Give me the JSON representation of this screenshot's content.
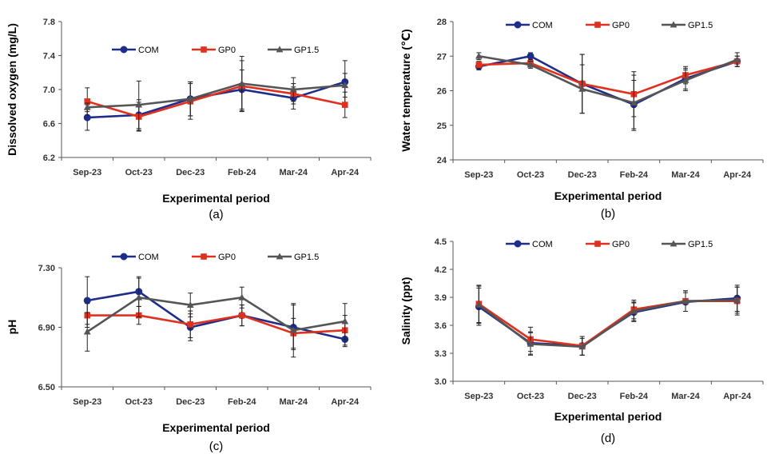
{
  "chart_data": [
    {
      "type": "line",
      "panel": "(a)",
      "title": "",
      "xlabel": "Experimental period",
      "ylabel": "Dissolved oxygen (mg/L)",
      "categories": [
        "Sep-23",
        "Oct-23",
        "Dec-23",
        "Feb-24",
        "Mar-24",
        "Apr-24"
      ],
      "ylim": [
        6.2,
        7.8
      ],
      "yticks": [
        6.2,
        6.6,
        7.0,
        7.4,
        7.8
      ],
      "ytick_labels": [
        "6.2",
        "6.6",
        "7.0",
        "7.4",
        "7.8"
      ],
      "legend": "top",
      "series": [
        {
          "name": "COM",
          "color": "#1f2d8a",
          "marker": "circle",
          "values": [
            6.67,
            6.7,
            6.89,
            7.0,
            6.9,
            7.09
          ],
          "errors": [
            0.15,
            0.18,
            0.2,
            0.23,
            0.13,
            0.25
          ]
        },
        {
          "name": "GP0",
          "color": "#e0301e",
          "marker": "square",
          "values": [
            6.86,
            6.68,
            6.86,
            7.04,
            6.95,
            6.82
          ],
          "errors": [
            0.16,
            0.17,
            0.21,
            0.3,
            0.12,
            0.15
          ]
        },
        {
          "name": "GP1.5",
          "color": "#555555",
          "marker": "triangle",
          "values": [
            6.79,
            6.82,
            6.89,
            7.07,
            7.0,
            7.05
          ],
          "errors": [
            0.05,
            0.28,
            0.2,
            0.32,
            0.14,
            0.14
          ]
        }
      ]
    },
    {
      "type": "line",
      "panel": "(b)",
      "title": "",
      "xlabel": "Experimental period",
      "ylabel": "Water temperature (℃)",
      "categories": [
        "Sep-23",
        "Oct-23",
        "Dec-23",
        "Feb-24",
        "Mar-24",
        "Apr-24"
      ],
      "ylim": [
        24,
        28
      ],
      "yticks": [
        24,
        25,
        26,
        27,
        28
      ],
      "ytick_labels": [
        "24",
        "25",
        "26",
        "27",
        "28"
      ],
      "legend": "top",
      "series": [
        {
          "name": "COM",
          "color": "#1f2d8a",
          "marker": "circle",
          "values": [
            26.7,
            27.0,
            26.2,
            25.6,
            26.35,
            26.85
          ],
          "errors": [
            0.1,
            0.1,
            0.85,
            0.7,
            0.3,
            0.15
          ]
        },
        {
          "name": "GP0",
          "color": "#e0301e",
          "marker": "square",
          "values": [
            26.75,
            26.8,
            26.2,
            25.9,
            26.45,
            26.85
          ],
          "errors": [
            0.1,
            0.1,
            0.85,
            0.65,
            0.25,
            0.15
          ]
        },
        {
          "name": "GP1.5",
          "color": "#555555",
          "marker": "triangle",
          "values": [
            27.0,
            26.75,
            26.05,
            25.65,
            26.3,
            26.9
          ],
          "errors": [
            0.1,
            0.1,
            0.7,
            0.8,
            0.3,
            0.2
          ]
        }
      ]
    },
    {
      "type": "line",
      "panel": "(c)",
      "title": "",
      "xlabel": "Experimental period",
      "ylabel": "pH",
      "categories": [
        "Sep-23",
        "Oct-23",
        "Dec-23",
        "Feb-24",
        "Mar-24",
        "Apr-24"
      ],
      "ylim": [
        6.5,
        7.3
      ],
      "yticks": [
        6.5,
        6.9,
        7.3
      ],
      "ytick_labels": [
        "6.50",
        "6.90",
        "7.30"
      ],
      "legend": "top",
      "series": [
        {
          "name": "COM",
          "color": "#1f2d8a",
          "marker": "circle",
          "values": [
            7.08,
            7.14,
            6.9,
            6.98,
            6.9,
            6.82
          ],
          "errors": [
            0.16,
            0.1,
            0.09,
            0.07,
            0.15,
            0.05
          ]
        },
        {
          "name": "GP0",
          "color": "#e0301e",
          "marker": "square",
          "values": [
            6.98,
            6.98,
            6.92,
            6.98,
            6.86,
            6.88
          ],
          "errors": [
            0.08,
            0.06,
            0.09,
            0.07,
            0.1,
            0.1
          ]
        },
        {
          "name": "GP1.5",
          "color": "#555555",
          "marker": "triangle",
          "values": [
            6.87,
            7.1,
            7.05,
            7.1,
            6.88,
            6.94
          ],
          "errors": [
            0.13,
            0.13,
            0.08,
            0.07,
            0.18,
            0.12
          ]
        }
      ]
    },
    {
      "type": "line",
      "panel": "(d)",
      "title": "",
      "xlabel": "Experimental period",
      "ylabel": "Salinity (ppt)",
      "categories": [
        "Sep-23",
        "Oct-23",
        "Dec-23",
        "Feb-24",
        "Mar-24",
        "Apr-24"
      ],
      "ylim": [
        3.0,
        4.5
      ],
      "yticks": [
        3.0,
        3.3,
        3.6,
        3.9,
        4.2,
        4.5
      ],
      "ytick_labels": [
        "3.0",
        "3.3",
        "3.6",
        "3.9",
        "4.2",
        "4.5"
      ],
      "legend": "top",
      "series": [
        {
          "name": "COM",
          "color": "#1f2d8a",
          "marker": "circle",
          "values": [
            3.8,
            3.41,
            3.38,
            3.74,
            3.85,
            3.89
          ],
          "errors": [
            0.2,
            0.12,
            0.1,
            0.1,
            0.1,
            0.14
          ]
        },
        {
          "name": "GP0",
          "color": "#e0301e",
          "marker": "square",
          "values": [
            3.83,
            3.45,
            3.38,
            3.77,
            3.86,
            3.86
          ],
          "errors": [
            0.2,
            0.13,
            0.1,
            0.1,
            0.11,
            0.15
          ]
        },
        {
          "name": "GP1.5",
          "color": "#555555",
          "marker": "triangle",
          "values": [
            3.82,
            3.4,
            3.37,
            3.75,
            3.86,
            3.87
          ],
          "errors": [
            0.2,
            0.12,
            0.09,
            0.1,
            0.11,
            0.14
          ]
        }
      ]
    }
  ]
}
